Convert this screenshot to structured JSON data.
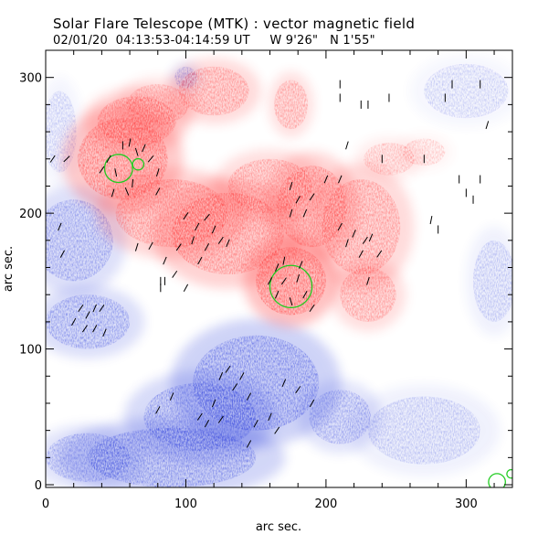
{
  "header": {
    "title": "Solar Flare Telescope (MTK) : vector magnetic field",
    "subtitle_date": "02/01/20",
    "subtitle_time": "04:13:53-04:14:59 UT",
    "subtitle_coords": "W 9'26\"   N 1'55\""
  },
  "chart_data": {
    "type": "heatmap",
    "title": "Solar Flare Telescope (MTK) : vector magnetic field",
    "xlabel": "arc sec.",
    "ylabel": "arc sec.",
    "xlim": [
      0,
      333
    ],
    "ylim": [
      -2,
      320
    ],
    "xticks": [
      0,
      100,
      200,
      300
    ],
    "yticks": [
      0,
      100,
      200,
      300
    ],
    "colors": {
      "positive": "#ff4444",
      "negative": "#3344dd",
      "contour": "#22cc22",
      "vectors": "#000000"
    },
    "positive_regions": [
      {
        "x": 55,
        "y": 240,
        "rx": 32,
        "ry": 30,
        "strength": 0.8
      },
      {
        "x": 65,
        "y": 268,
        "rx": 28,
        "ry": 18,
        "strength": 0.6
      },
      {
        "x": 80,
        "y": 280,
        "rx": 22,
        "ry": 15,
        "strength": 0.4
      },
      {
        "x": 120,
        "y": 290,
        "rx": 25,
        "ry": 18,
        "strength": 0.55
      },
      {
        "x": 90,
        "y": 200,
        "rx": 40,
        "ry": 25,
        "strength": 0.6
      },
      {
        "x": 130,
        "y": 185,
        "rx": 40,
        "ry": 30,
        "strength": 0.65
      },
      {
        "x": 160,
        "y": 220,
        "rx": 30,
        "ry": 20,
        "strength": 0.5
      },
      {
        "x": 175,
        "y": 150,
        "rx": 25,
        "ry": 25,
        "strength": 0.9
      },
      {
        "x": 190,
        "y": 205,
        "rx": 25,
        "ry": 30,
        "strength": 0.6
      },
      {
        "x": 225,
        "y": 190,
        "rx": 28,
        "ry": 35,
        "strength": 0.55
      },
      {
        "x": 230,
        "y": 140,
        "rx": 20,
        "ry": 20,
        "strength": 0.5
      },
      {
        "x": 175,
        "y": 280,
        "rx": 12,
        "ry": 18,
        "strength": 0.45
      },
      {
        "x": 245,
        "y": 240,
        "rx": 18,
        "ry": 12,
        "strength": 0.25
      },
      {
        "x": 270,
        "y": 245,
        "rx": 15,
        "ry": 10,
        "strength": 0.15
      }
    ],
    "negative_regions": [
      {
        "x": 20,
        "y": 180,
        "rx": 28,
        "ry": 30,
        "strength": 0.45
      },
      {
        "x": 30,
        "y": 120,
        "rx": 30,
        "ry": 20,
        "strength": 0.5
      },
      {
        "x": 150,
        "y": 75,
        "rx": 45,
        "ry": 35,
        "strength": 0.65
      },
      {
        "x": 110,
        "y": 50,
        "rx": 40,
        "ry": 25,
        "strength": 0.55
      },
      {
        "x": 90,
        "y": 20,
        "rx": 60,
        "ry": 22,
        "strength": 0.6
      },
      {
        "x": 210,
        "y": 50,
        "rx": 22,
        "ry": 20,
        "strength": 0.4
      },
      {
        "x": 30,
        "y": 20,
        "rx": 30,
        "ry": 18,
        "strength": 0.4
      },
      {
        "x": 100,
        "y": 300,
        "rx": 8,
        "ry": 8,
        "strength": 0.4
      },
      {
        "x": 320,
        "y": 150,
        "rx": 15,
        "ry": 30,
        "strength": 0.2
      },
      {
        "x": 270,
        "y": 40,
        "rx": 40,
        "ry": 25,
        "strength": 0.2
      },
      {
        "x": 300,
        "y": 290,
        "rx": 30,
        "ry": 20,
        "strength": 0.12
      },
      {
        "x": 10,
        "y": 260,
        "rx": 12,
        "ry": 30,
        "strength": 0.15
      }
    ],
    "contours": [
      {
        "x": 52,
        "y": 233,
        "r": 10
      },
      {
        "x": 66,
        "y": 236,
        "r": 4
      },
      {
        "x": 175,
        "y": 146,
        "r": 15
      },
      {
        "x": 322,
        "y": 2,
        "r": 6
      },
      {
        "x": 332,
        "y": 8,
        "r": 3
      }
    ],
    "vectors": [
      [
        55,
        250,
        0.0
      ],
      [
        60,
        252,
        0.2
      ],
      [
        65,
        245,
        -0.3
      ],
      [
        70,
        248,
        0.4
      ],
      [
        45,
        240,
        0.5
      ],
      [
        50,
        230,
        -0.2
      ],
      [
        62,
        222,
        0.1
      ],
      [
        40,
        232,
        0.6
      ],
      [
        48,
        215,
        0.3
      ],
      [
        58,
        216,
        -0.4
      ],
      [
        75,
        240,
        0.7
      ],
      [
        80,
        230,
        0.3
      ],
      [
        80,
        216,
        0.5
      ],
      [
        15,
        240,
        0.8
      ],
      [
        5,
        240,
        0.6
      ],
      [
        10,
        190,
        0.4
      ],
      [
        12,
        170,
        0.5
      ],
      [
        100,
        198,
        0.6
      ],
      [
        108,
        190,
        0.5
      ],
      [
        115,
        197,
        0.7
      ],
      [
        120,
        188,
        0.4
      ],
      [
        125,
        180,
        0.6
      ],
      [
        105,
        180,
        0.3
      ],
      [
        115,
        175,
        0.5
      ],
      [
        130,
        178,
        0.4
      ],
      [
        95,
        175,
        0.6
      ],
      [
        110,
        165,
        0.5
      ],
      [
        65,
        175,
        0.3
      ],
      [
        75,
        176,
        0.5
      ],
      [
        85,
        165,
        0.4
      ],
      [
        92,
        155,
        0.6
      ],
      [
        100,
        145,
        0.5
      ],
      [
        165,
        160,
        0.4
      ],
      [
        170,
        150,
        0.6
      ],
      [
        180,
        152,
        0.3
      ],
      [
        185,
        140,
        0.5
      ],
      [
        175,
        135,
        -0.3
      ],
      [
        165,
        140,
        0.4
      ],
      [
        160,
        150,
        0.5
      ],
      [
        190,
        130,
        0.6
      ],
      [
        182,
        162,
        0.4
      ],
      [
        170,
        165,
        0.2
      ],
      [
        175,
        220,
        0.3
      ],
      [
        180,
        210,
        0.5
      ],
      [
        185,
        200,
        0.4
      ],
      [
        190,
        212,
        0.6
      ],
      [
        175,
        200,
        0.3
      ],
      [
        200,
        225,
        0.4
      ],
      [
        210,
        190,
        0.5
      ],
      [
        220,
        185,
        0.4
      ],
      [
        228,
        180,
        0.6
      ],
      [
        215,
        178,
        0.3
      ],
      [
        225,
        170,
        0.5
      ],
      [
        232,
        182,
        0.4
      ],
      [
        238,
        170,
        0.6
      ],
      [
        230,
        150,
        0.3
      ],
      [
        210,
        225,
        0.4
      ],
      [
        215,
        250,
        0.3
      ],
      [
        240,
        240,
        0.0
      ],
      [
        270,
        240,
        0.0
      ],
      [
        295,
        225,
        0.0
      ],
      [
        300,
        215,
        0.0
      ],
      [
        305,
        210,
        0.0
      ],
      [
        310,
        225,
        0.0
      ],
      [
        225,
        280,
        0.0
      ],
      [
        230,
        280,
        0.0
      ],
      [
        245,
        285,
        0.0
      ],
      [
        285,
        285,
        0.0
      ],
      [
        290,
        295,
        0.0
      ],
      [
        310,
        295,
        0.0
      ],
      [
        210,
        295,
        0.0
      ],
      [
        315,
        265,
        0.3
      ],
      [
        275,
        195,
        0.2
      ],
      [
        280,
        188,
        0.0
      ],
      [
        210,
        285,
        0.0
      ],
      [
        25,
        130,
        0.6
      ],
      [
        30,
        125,
        0.5
      ],
      [
        35,
        130,
        0.4
      ],
      [
        40,
        130,
        0.6
      ],
      [
        20,
        120,
        0.5
      ],
      [
        28,
        115,
        0.6
      ],
      [
        35,
        115,
        0.5
      ],
      [
        42,
        112,
        0.4
      ],
      [
        82,
        150,
        0.0
      ],
      [
        85,
        150,
        0.0
      ],
      [
        82,
        145,
        0.0
      ],
      [
        130,
        85,
        0.6
      ],
      [
        140,
        80,
        0.5
      ],
      [
        125,
        80,
        0.4
      ],
      [
        135,
        72,
        0.6
      ],
      [
        145,
        65,
        0.5
      ],
      [
        120,
        60,
        0.4
      ],
      [
        110,
        50,
        0.6
      ],
      [
        115,
        45,
        0.5
      ],
      [
        125,
        48,
        0.6
      ],
      [
        150,
        45,
        0.5
      ],
      [
        160,
        50,
        0.4
      ],
      [
        165,
        40,
        0.6
      ],
      [
        145,
        30,
        0.5
      ],
      [
        170,
        75,
        0.4
      ],
      [
        80,
        55,
        0.5
      ],
      [
        90,
        65,
        0.4
      ],
      [
        180,
        70,
        0.6
      ],
      [
        190,
        60,
        0.5
      ]
    ]
  }
}
